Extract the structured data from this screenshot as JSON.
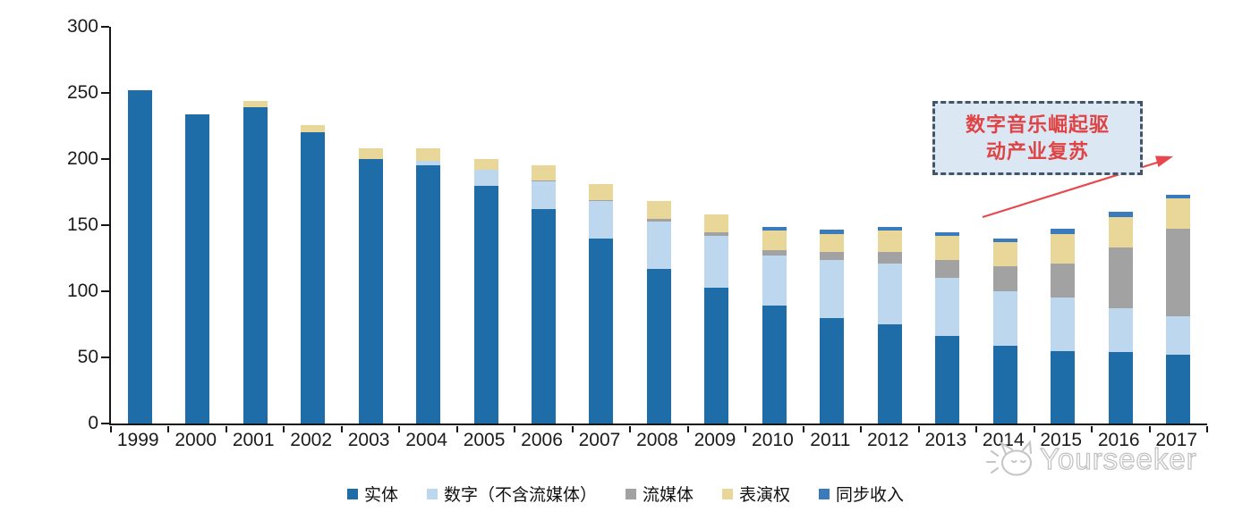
{
  "chart_data": {
    "type": "bar",
    "stacked": true,
    "categories": [
      "1999",
      "2000",
      "2001",
      "2002",
      "2003",
      "2004",
      "2005",
      "2006",
      "2007",
      "2008",
      "2009",
      "2010",
      "2011",
      "2012",
      "2013",
      "2014",
      "2015",
      "2016",
      "2017"
    ],
    "series": [
      {
        "key": "physical",
        "name": "实体",
        "color": "#1E6CA8",
        "values": [
          252,
          234,
          239,
          220,
          200,
          195,
          180,
          162,
          140,
          117,
          103,
          89,
          80,
          75,
          66,
          59,
          55,
          54,
          52
        ]
      },
      {
        "key": "digital",
        "name": "数字（不含流媒体）",
        "color": "#BDD7EE",
        "values": [
          0,
          0,
          0,
          0,
          0,
          4,
          12,
          21,
          28,
          36,
          39,
          38,
          44,
          46,
          44,
          41,
          40,
          33,
          29
        ]
      },
      {
        "key": "streaming",
        "name": "流媒体",
        "color": "#A2A2A2",
        "values": [
          0,
          0,
          0,
          0,
          0,
          0,
          0,
          1,
          1,
          2,
          3,
          4,
          6,
          9,
          14,
          19,
          26,
          46,
          66
        ]
      },
      {
        "key": "performance",
        "name": "表演权",
        "color": "#E9D79A",
        "values": [
          0,
          0,
          5,
          6,
          8,
          9,
          8,
          11,
          12,
          13,
          13,
          15,
          13,
          16,
          18,
          18,
          22,
          23,
          23
        ]
      },
      {
        "key": "sync",
        "name": "同步收入",
        "color": "#3A7BBE",
        "values": [
          0,
          0,
          0,
          0,
          0,
          0,
          0,
          0,
          0,
          0,
          0,
          3,
          4,
          3,
          3,
          3,
          4,
          4,
          3
        ]
      }
    ],
    "totals": [
      252,
      234,
      244,
      226,
      208,
      208,
      200,
      195,
      181,
      168,
      158,
      149,
      147,
      149,
      145,
      140,
      147,
      160,
      173
    ],
    "ylim": [
      0,
      300
    ],
    "yticks": [
      0,
      50,
      100,
      150,
      200,
      250,
      300
    ],
    "grid": false,
    "legend_position": "bottom"
  },
  "annotation": {
    "line1": "数字音乐崛起驱",
    "line2": "动产业复苏",
    "border_color": "#44546A",
    "fill_color": "#DCE7F4",
    "text_color": "#DF4343",
    "arrow_color": "#E8484D"
  },
  "watermark": {
    "brand": "Yourseeker"
  }
}
